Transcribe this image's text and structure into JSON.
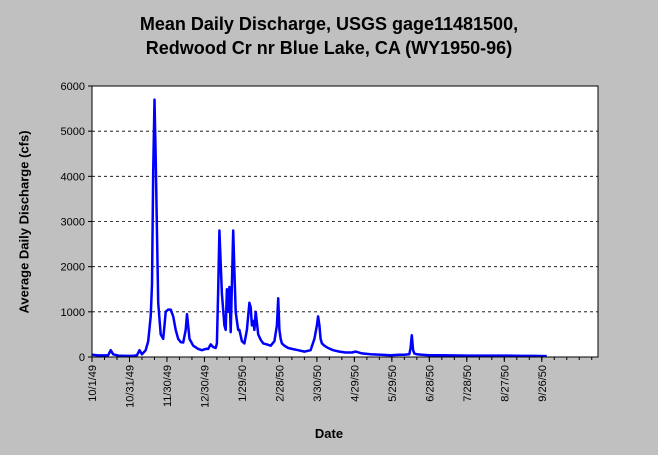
{
  "chart_data": {
    "type": "line",
    "title_line1": "Mean Daily Discharge, USGS gage11481500,",
    "title_line2": "Redwood Cr nr Blue Lake, CA (WY1950-96)",
    "xlabel": "Date",
    "ylabel": "Average Daily Discharge (cfs)",
    "ylim": [
      0,
      6000
    ],
    "yticks": [
      "0",
      "1000",
      "2000",
      "3000",
      "4000",
      "5000",
      "6000"
    ],
    "xlim": [
      "1949-10-01",
      "1950-11-10"
    ],
    "xticks": [
      {
        "label": "10/1/49",
        "date": "1949-10-01"
      },
      {
        "label": "10/31/49",
        "date": "1949-10-31"
      },
      {
        "label": "11/30/49",
        "date": "1949-11-30"
      },
      {
        "label": "12/30/49",
        "date": "1949-12-30"
      },
      {
        "label": "1/29/50",
        "date": "1950-01-29"
      },
      {
        "label": "2/28/50",
        "date": "1950-02-28"
      },
      {
        "label": "3/30/50",
        "date": "1950-03-30"
      },
      {
        "label": "4/29/50",
        "date": "1950-04-29"
      },
      {
        "label": "5/29/50",
        "date": "1950-05-29"
      },
      {
        "label": "6/28/50",
        "date": "1950-06-28"
      },
      {
        "label": "7/28/50",
        "date": "1950-07-28"
      },
      {
        "label": "8/27/50",
        "date": "1950-08-27"
      },
      {
        "label": "9/26/50",
        "date": "1950-09-26"
      }
    ],
    "grid": "horizontal-dashed",
    "line_color": "#0000ff",
    "plot_background": "#ffffff",
    "series": [
      {
        "x": [
          "1949-10-01",
          "1949-10-05",
          "1949-10-10",
          "1949-10-14",
          "1949-10-16",
          "1949-10-18",
          "1949-10-22",
          "1949-10-28",
          "1949-11-03",
          "1949-11-06",
          "1949-11-08",
          "1949-11-10",
          "1949-11-13",
          "1949-11-15",
          "1949-11-17",
          "1949-11-18",
          "1949-11-19",
          "1949-11-20",
          "1949-11-21",
          "1949-11-23",
          "1949-11-25",
          "1949-11-27",
          "1949-11-28",
          "1949-11-29",
          "1949-12-01",
          "1949-12-03",
          "1949-12-05",
          "1949-12-07",
          "1949-12-09",
          "1949-12-11",
          "1949-12-13",
          "1949-12-15",
          "1949-12-16",
          "1949-12-18",
          "1949-12-21",
          "1949-12-25",
          "1949-12-28",
          "1949-12-31",
          "1950-01-02",
          "1950-01-04",
          "1950-01-06",
          "1950-01-08",
          "1950-01-09",
          "1950-01-10",
          "1950-01-11",
          "1950-01-13",
          "1950-01-15",
          "1950-01-16",
          "1950-01-17",
          "1950-01-18",
          "1950-01-19",
          "1950-01-20",
          "1950-01-21",
          "1950-01-22",
          "1950-01-23",
          "1950-01-24",
          "1950-01-25",
          "1950-01-26",
          "1950-01-27",
          "1950-01-29",
          "1950-01-31",
          "1950-02-02",
          "1950-02-04",
          "1950-02-05",
          "1950-02-06",
          "1950-02-07",
          "1950-02-08",
          "1950-02-09",
          "1950-02-11",
          "1950-02-13",
          "1950-02-15",
          "1950-02-18",
          "1950-02-21",
          "1950-02-24",
          "1950-02-26",
          "1950-02-27",
          "1950-02-28",
          "1950-03-01",
          "1950-03-02",
          "1950-03-04",
          "1950-03-07",
          "1950-03-10",
          "1950-03-15",
          "1950-03-20",
          "1950-03-25",
          "1950-03-28",
          "1950-03-30",
          "1950-03-31",
          "1950-04-01",
          "1950-04-02",
          "1950-04-03",
          "1950-04-05",
          "1950-04-08",
          "1950-04-12",
          "1950-04-17",
          "1950-04-22",
          "1950-04-27",
          "1950-04-30",
          "1950-05-05",
          "1950-05-12",
          "1950-05-20",
          "1950-05-28",
          "1950-06-04",
          "1950-06-08",
          "1950-06-12",
          "1950-06-13",
          "1950-06-14",
          "1950-06-15",
          "1950-06-16",
          "1950-06-18",
          "1950-06-22",
          "1950-06-28",
          "1950-07-05",
          "1950-07-15",
          "1950-07-28",
          "1950-08-10",
          "1950-08-27",
          "1950-09-10",
          "1950-09-20",
          "1950-09-30"
        ],
        "y": [
          50,
          40,
          35,
          40,
          150,
          60,
          30,
          25,
          25,
          40,
          150,
          60,
          150,
          350,
          900,
          1600,
          4100,
          5700,
          4400,
          1200,
          500,
          400,
          700,
          1000,
          1050,
          1050,
          900,
          600,
          400,
          330,
          320,
          600,
          950,
          400,
          250,
          180,
          150,
          180,
          180,
          280,
          220,
          200,
          300,
          1500,
          2800,
          1400,
          700,
          600,
          1500,
          1000,
          1550,
          550,
          1600,
          2800,
          1900,
          1000,
          800,
          600,
          600,
          350,
          300,
          600,
          1200,
          1100,
          700,
          800,
          600,
          1000,
          500,
          380,
          300,
          280,
          250,
          350,
          700,
          1300,
          600,
          400,
          300,
          250,
          200,
          180,
          150,
          120,
          150,
          400,
          700,
          900,
          700,
          400,
          300,
          250,
          200,
          150,
          120,
          100,
          100,
          120,
          80,
          60,
          50,
          40,
          50,
          50,
          60,
          200,
          480,
          150,
          80,
          60,
          50,
          40,
          40,
          35,
          30,
          30,
          30,
          25,
          25,
          20
        ]
      }
    ]
  }
}
